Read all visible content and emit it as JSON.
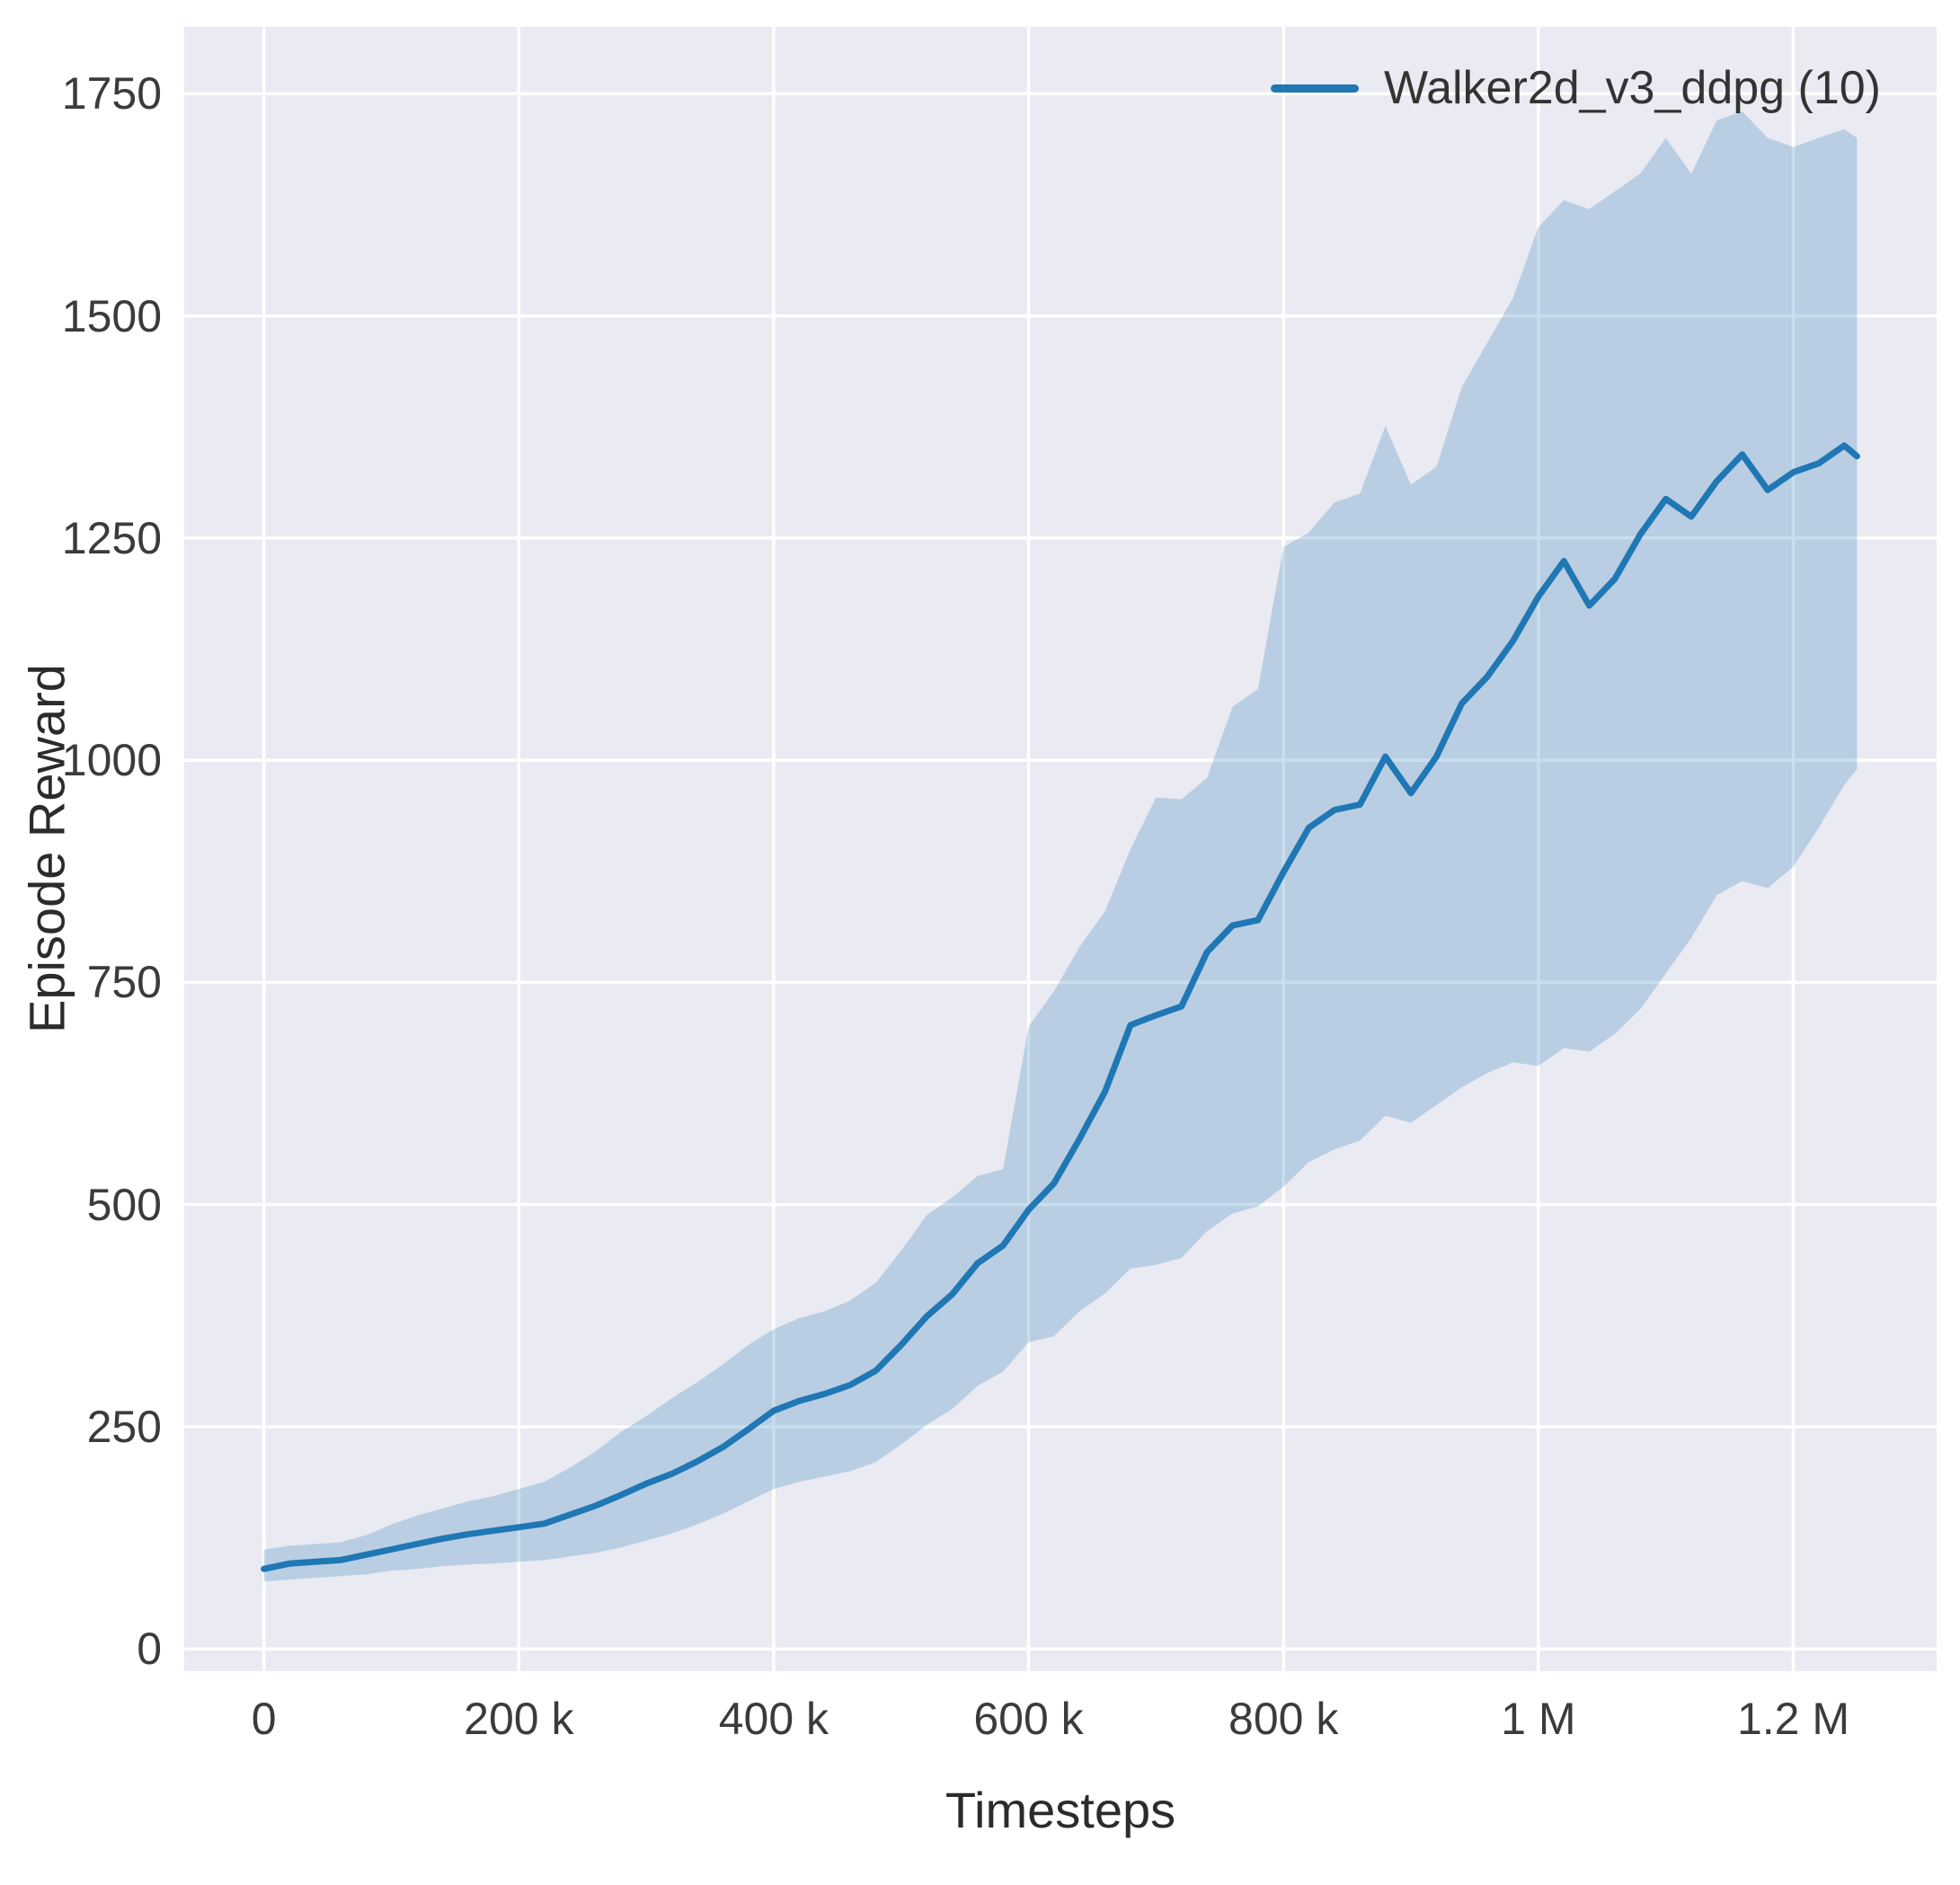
{
  "figure": {
    "background": "#ffffff",
    "plot_background": "#eaeaf2",
    "grid_color": "#ffffff"
  },
  "chart_data": {
    "type": "line",
    "title": "",
    "xlabel": "Timesteps",
    "ylabel": "Episode Reward",
    "grid": true,
    "legend_position": "upper right",
    "legend": [
      {
        "label": "Walker2d_v3_ddpg (10)",
        "color": "#1f77b4"
      }
    ],
    "xlim": [
      -62500,
      1312500
    ],
    "ylim": [
      -25,
      1825
    ],
    "x_ticks": {
      "values": [
        0,
        200000,
        400000,
        600000,
        800000,
        1000000,
        1200000
      ],
      "labels": [
        "0",
        "200 k",
        "400 k",
        "600 k",
        "800 k",
        "1 M",
        "1.2 M"
      ]
    },
    "y_ticks": {
      "values": [
        0,
        250,
        500,
        750,
        1000,
        1250,
        1500,
        1750
      ],
      "labels": [
        "0",
        "250",
        "500",
        "750",
        "1000",
        "1250",
        "1500",
        "1750"
      ]
    },
    "series": [
      {
        "name": "Walker2d_v3_ddpg (10)",
        "color": "#1f77b4",
        "band_color": "rgba(31,119,180,0.24)",
        "x": [
          0,
          20000,
          40000,
          60000,
          80000,
          100000,
          120000,
          140000,
          160000,
          180000,
          200000,
          220000,
          240000,
          260000,
          280000,
          300000,
          320000,
          340000,
          360000,
          380000,
          400000,
          420000,
          440000,
          460000,
          480000,
          500000,
          520000,
          540000,
          560000,
          580000,
          600000,
          620000,
          640000,
          660000,
          680000,
          700000,
          720000,
          740000,
          760000,
          780000,
          800000,
          820000,
          840000,
          860000,
          880000,
          900000,
          920000,
          940000,
          960000,
          980000,
          1000000,
          1020000,
          1040000,
          1060000,
          1080000,
          1100000,
          1120000,
          1140000,
          1160000,
          1180000,
          1200000,
          1220000,
          1240000,
          1250000
        ],
        "mean": [
          90,
          96,
          98,
          100,
          106,
          112,
          118,
          124,
          129,
          133,
          137,
          141,
          151,
          161,
          173,
          186,
          197,
          211,
          227,
          247,
          268,
          279,
          287,
          297,
          313,
          342,
          374,
          399,
          434,
          454,
          494,
          524,
          574,
          627,
          702,
          713,
          723,
          784,
          814,
          820,
          874,
          924,
          944,
          950,
          1004,
          963,
          1004,
          1064,
          1094,
          1134,
          1184,
          1224,
          1174,
          1204,
          1254,
          1294,
          1274,
          1314,
          1344,
          1304,
          1324,
          1334,
          1354,
          1342
        ],
        "band_low": [
          76,
          78,
          80,
          82,
          84,
          88,
          90,
          93,
          95,
          96,
          98,
          100,
          104,
          108,
          114,
          122,
          130,
          140,
          152,
          166,
          180,
          188,
          194,
          200,
          210,
          230,
          252,
          270,
          296,
          312,
          345,
          352,
          380,
          400,
          428,
          432,
          440,
          470,
          490,
          498,
          520,
          548,
          562,
          572,
          600,
          592,
          612,
          632,
          648,
          660,
          656,
          676,
          672,
          692,
          720,
          760,
          800,
          848,
          864,
          856,
          880,
          924,
          972,
          990
        ],
        "band_high": [
          112,
          116,
          118,
          120,
          128,
          140,
          150,
          158,
          166,
          172,
          180,
          188,
          204,
          222,
          244,
          262,
          282,
          300,
          320,
          342,
          360,
          372,
          380,
          392,
          412,
          448,
          488,
          508,
          532,
          540,
          700,
          740,
          790,
          830,
          900,
          958,
          956,
          980,
          1060,
          1080,
          1240,
          1256,
          1290,
          1300,
          1376,
          1310,
          1330,
          1420,
          1470,
          1520,
          1600,
          1630,
          1620,
          1640,
          1660,
          1700,
          1660,
          1720,
          1730,
          1700,
          1690,
          1700,
          1710,
          1700
        ]
      }
    ]
  }
}
